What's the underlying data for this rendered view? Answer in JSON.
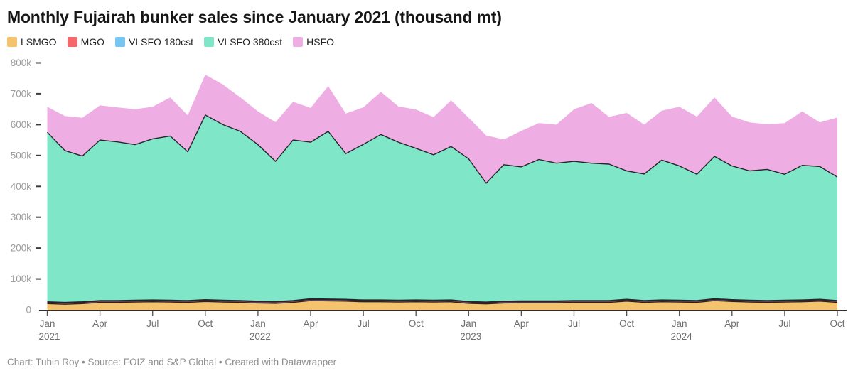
{
  "title": "Monthly Fujairah bunker sales since January 2021 (thousand mt)",
  "legend": {
    "items": [
      {
        "label": "LSMGO",
        "color": "#f5c26d"
      },
      {
        "label": "MGO",
        "color": "#f4686c"
      },
      {
        "label": "VLSFO 180cst",
        "color": "#77c6f2"
      },
      {
        "label": "VLSFO 380cst",
        "color": "#7fe7c7"
      },
      {
        "label": "HSFO",
        "color": "#efaee3"
      }
    ]
  },
  "chart_data": {
    "type": "area",
    "stacked": true,
    "title": "Monthly Fujairah bunker sales since January 2021 (thousand mt)",
    "unit": "mt",
    "grid": false,
    "legend_position": "top",
    "outline_color": "#26242b",
    "ylim": [
      0,
      800000
    ],
    "yticks": [
      {
        "value": 0,
        "label": "0"
      },
      {
        "value": 100000,
        "label": "100k"
      },
      {
        "value": 200000,
        "label": "200k"
      },
      {
        "value": 300000,
        "label": "300k"
      },
      {
        "value": 400000,
        "label": "400k"
      },
      {
        "value": 500000,
        "label": "500k"
      },
      {
        "value": 600000,
        "label": "600k"
      },
      {
        "value": 700000,
        "label": "700k"
      },
      {
        "value": 800000,
        "label": "800k"
      }
    ],
    "x": [
      "Jan 2021",
      "Feb 2021",
      "Mar 2021",
      "Apr 2021",
      "May 2021",
      "Jun 2021",
      "Jul 2021",
      "Aug 2021",
      "Sep 2021",
      "Oct 2021",
      "Nov 2021",
      "Dec 2021",
      "Jan 2022",
      "Feb 2022",
      "Mar 2022",
      "Apr 2022",
      "May 2022",
      "Jun 2022",
      "Jul 2022",
      "Aug 2022",
      "Sep 2022",
      "Oct 2022",
      "Nov 2022",
      "Dec 2022",
      "Jan 2023",
      "Feb 2023",
      "Mar 2023",
      "Apr 2023",
      "May 2023",
      "Jun 2023",
      "Jul 2023",
      "Aug 2023",
      "Sep 2023",
      "Oct 2023",
      "Nov 2023",
      "Dec 2023",
      "Jan 2024",
      "Feb 2024",
      "Mar 2024",
      "Apr 2024",
      "May 2024",
      "Jun 2024",
      "Jul 2024",
      "Aug 2024",
      "Sep 2024",
      "Oct 2024"
    ],
    "xticks": [
      {
        "index": 0,
        "label": "Jan",
        "year": "2021"
      },
      {
        "index": 3,
        "label": "Apr"
      },
      {
        "index": 6,
        "label": "Jul"
      },
      {
        "index": 9,
        "label": "Oct"
      },
      {
        "index": 12,
        "label": "Jan",
        "year": "2022"
      },
      {
        "index": 15,
        "label": "Apr"
      },
      {
        "index": 18,
        "label": "Jul"
      },
      {
        "index": 21,
        "label": "Oct"
      },
      {
        "index": 24,
        "label": "Jan",
        "year": "2023"
      },
      {
        "index": 27,
        "label": "Apr"
      },
      {
        "index": 30,
        "label": "Jul"
      },
      {
        "index": 33,
        "label": "Oct"
      },
      {
        "index": 36,
        "label": "Jan",
        "year": "2024"
      },
      {
        "index": 39,
        "label": "Apr"
      },
      {
        "index": 42,
        "label": "Jul"
      },
      {
        "index": 45,
        "label": "Oct"
      }
    ],
    "series": [
      {
        "name": "LSMGO",
        "color": "#f5c26d",
        "values": [
          20000,
          18000,
          20000,
          24000,
          24000,
          25000,
          26000,
          25000,
          24000,
          27000,
          25000,
          24000,
          22000,
          21000,
          24000,
          30000,
          29000,
          28000,
          26000,
          26000,
          25000,
          26000,
          25000,
          26000,
          21000,
          19000,
          22000,
          23000,
          23000,
          23000,
          24000,
          24000,
          24000,
          28000,
          24000,
          26000,
          25000,
          24000,
          30000,
          27000,
          25000,
          24000,
          25000,
          26000,
          28000,
          24000
        ]
      },
      {
        "name": "MGO",
        "color": "#f4686c",
        "values": [
          4000,
          4000,
          4000,
          4000,
          4000,
          4000,
          4000,
          4000,
          4000,
          4000,
          4000,
          4000,
          4000,
          4000,
          4000,
          4000,
          4000,
          4000,
          4000,
          4000,
          4000,
          4000,
          4000,
          4000,
          4000,
          4000,
          4000,
          4000,
          4000,
          4000,
          4000,
          4000,
          4000,
          4000,
          4000,
          4000,
          4000,
          4000,
          4000,
          4000,
          4000,
          4000,
          4000,
          4000,
          4000,
          4000
        ]
      },
      {
        "name": "VLSFO 180cst",
        "color": "#77c6f2",
        "values": [
          2000,
          2000,
          2000,
          2000,
          2000,
          2000,
          2000,
          2000,
          2000,
          2000,
          2000,
          2000,
          2000,
          2000,
          2000,
          2000,
          2000,
          2000,
          2000,
          2000,
          2000,
          2000,
          2000,
          2000,
          2000,
          2000,
          2000,
          2000,
          2000,
          2000,
          2000,
          2000,
          2000,
          2000,
          2000,
          2000,
          2000,
          2000,
          2000,
          2000,
          2000,
          2000,
          2000,
          2000,
          2000,
          2000
        ]
      },
      {
        "name": "VLSFO 380cst",
        "color": "#7fe7c7",
        "values": [
          549000,
          492000,
          472000,
          520000,
          514000,
          504000,
          522000,
          532000,
          482000,
          598000,
          569000,
          548000,
          507000,
          454000,
          520000,
          507000,
          543000,
          472000,
          504000,
          536000,
          512000,
          491000,
          471000,
          497000,
          462000,
          385000,
          442000,
          434000,
          458000,
          446000,
          451000,
          445000,
          442000,
          416000,
          410000,
          453000,
          435000,
          409000,
          461000,
          433000,
          419000,
          425000,
          408000,
          436000,
          430000,
          400000
        ]
      },
      {
        "name": "HSFO",
        "color": "#efaee3",
        "values": [
          83000,
          112000,
          124000,
          112000,
          112000,
          115000,
          104000,
          125000,
          118000,
          131000,
          130000,
          110000,
          108000,
          127000,
          124000,
          111000,
          147000,
          130000,
          120000,
          138000,
          116000,
          126000,
          122000,
          150000,
          133000,
          155000,
          82000,
          117000,
          118000,
          125000,
          169000,
          195000,
          153000,
          188000,
          160000,
          160000,
          192000,
          187000,
          191000,
          160000,
          157000,
          146000,
          166000,
          175000,
          143000,
          193000
        ]
      }
    ]
  },
  "footer": {
    "text": "Chart: Tuhin Roy • Source: FOIZ and S&P Global • Created with Datawrapper"
  }
}
